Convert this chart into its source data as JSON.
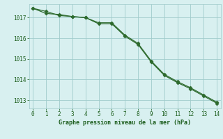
{
  "line1_x": [
    0,
    1,
    2,
    3,
    4,
    5,
    6,
    7,
    8,
    9,
    10,
    11,
    12,
    13,
    14
  ],
  "line1_y": [
    1017.45,
    1017.2,
    1017.15,
    1017.05,
    1017.0,
    1016.7,
    1016.7,
    1016.1,
    1015.7,
    1014.85,
    1014.2,
    1013.85,
    1013.55,
    1013.2,
    1012.85
  ],
  "line2_x": [
    0,
    1,
    2,
    3,
    4,
    5,
    6,
    7,
    8,
    9,
    10,
    11,
    12,
    13,
    14
  ],
  "line2_y": [
    1017.45,
    1017.3,
    1017.1,
    1017.05,
    1017.0,
    1016.75,
    1016.75,
    1016.15,
    1015.75,
    1014.9,
    1014.25,
    1013.9,
    1013.6,
    1013.25,
    1012.9
  ],
  "line_color": "#2d6a2d",
  "marker_color": "#2d6a2d",
  "bg_color": "#d8f0f0",
  "grid_color": "#a0cccc",
  "text_color": "#1a5c1a",
  "xlabel": "Graphe pression niveau de la mer (hPa)",
  "xlim": [
    -0.3,
    14.3
  ],
  "ylim": [
    1012.6,
    1017.65
  ],
  "yticks": [
    1013,
    1014,
    1015,
    1016,
    1017
  ],
  "xticks": [
    0,
    1,
    2,
    3,
    4,
    5,
    6,
    7,
    8,
    9,
    10,
    11,
    12,
    13,
    14
  ],
  "tick_fontsize": 5.5,
  "xlabel_fontsize": 6.0
}
